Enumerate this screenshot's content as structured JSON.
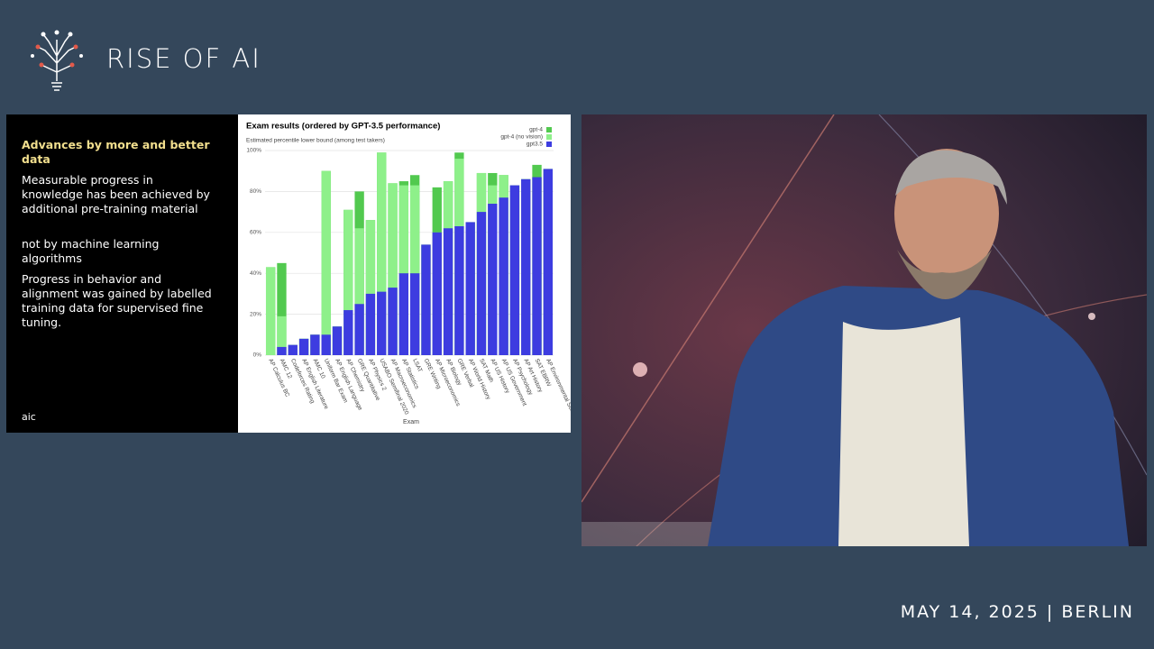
{
  "header": {
    "title": "RISE OF AI"
  },
  "slide": {
    "heading": "Advances by more and better data",
    "paragraphs": [
      "Measurable progress in knowledge has been achieved by additional pre-training material",
      "not by machine learning algorithms",
      "Progress in behavior and alignment was gained by labelled training data for supervised fine tuning."
    ],
    "logo": "aic"
  },
  "chart_data": {
    "type": "bar",
    "title": "Exam results (ordered by GPT-3.5 performance)",
    "subtitle": "Estimated percentile lower bound (among test takers)",
    "x_label": "Exam",
    "categories": [
      "AP Calculus BC",
      "AMC 12",
      "Codeforces Rating",
      "AP English Literature",
      "AMC 10",
      "Uniform Bar Exam",
      "AP English Language",
      "AP Chemistry",
      "GRE Quantitative",
      "AP Physics 2",
      "USABO Semifinal 2020",
      "AP Macroeconomics",
      "AP Statistics",
      "LSAT",
      "GRE Writing",
      "AP Microeconomics",
      "AP Biology",
      "GRE Verbal",
      "AP World History",
      "SAT Math",
      "AP US History",
      "AP US Government",
      "AP Psychology",
      "AP Art History",
      "SAT EBRW",
      "AP Environmental Science"
    ],
    "series": [
      {
        "name": "gpt-4",
        "color": "#52c94f",
        "values": [
          43,
          45,
          5,
          8,
          10,
          90,
          14,
          71,
          80,
          66,
          99,
          84,
          85,
          88,
          54,
          82,
          85,
          99,
          65,
          89,
          89,
          88,
          83,
          86,
          93,
          91
        ]
      },
      {
        "name": "gpt-4 (no vision)",
        "color": "#8ef08a",
        "values": [
          43,
          19,
          5,
          8,
          10,
          90,
          14,
          71,
          62,
          66,
          99,
          84,
          83,
          83,
          54,
          60,
          85,
          96,
          65,
          89,
          83,
          88,
          83,
          86,
          87,
          91
        ]
      },
      {
        "name": "gpt3.5",
        "color": "#3d3ce0",
        "values": [
          0,
          4,
          5,
          8,
          10,
          10,
          14,
          22,
          25,
          30,
          31,
          33,
          40,
          40,
          54,
          60,
          62,
          63,
          65,
          70,
          74,
          77,
          83,
          86,
          87,
          91
        ]
      }
    ],
    "ylim": [
      0,
      100
    ],
    "yticks": [
      {
        "value": 0,
        "label": "0%"
      },
      {
        "value": 20,
        "label": "20%"
      },
      {
        "value": 40,
        "label": "40%"
      },
      {
        "value": 60,
        "label": "60%"
      },
      {
        "value": 80,
        "label": "80%"
      },
      {
        "value": 100,
        "label": "100%"
      }
    ],
    "grid": true,
    "legend": "top-right"
  },
  "footer": {
    "date": "MAY 14, 2025 | BERLIN"
  }
}
